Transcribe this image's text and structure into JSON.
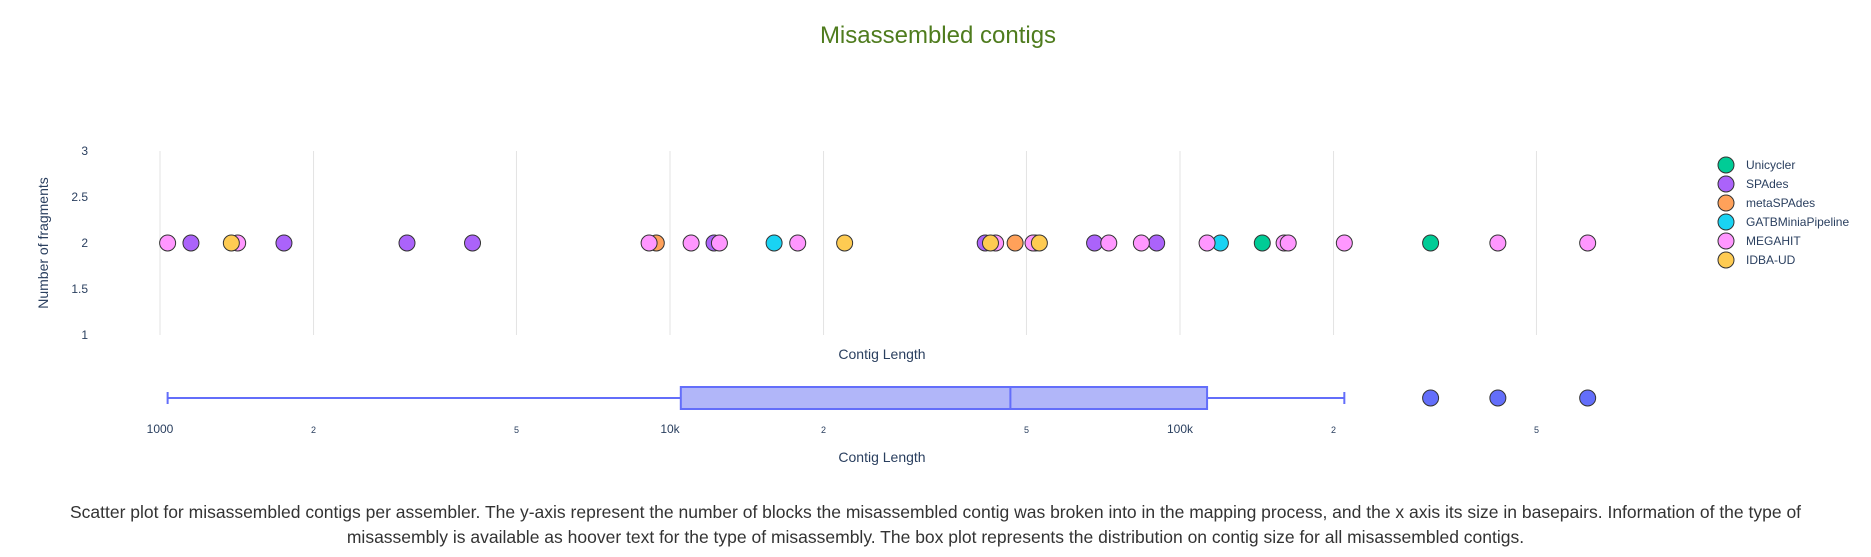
{
  "chart_data": {
    "type": "scatter",
    "title": "Misassembled contigs",
    "xlabel": "Contig Length",
    "ylabel": "Number of fragments",
    "x_scale": "log",
    "xlim": [
      1000,
      700000
    ],
    "ylim": [
      1,
      3
    ],
    "y_ticks": [
      {
        "value": 1,
        "label": "1"
      },
      {
        "value": 1.5,
        "label": "1.5"
      },
      {
        "value": 2,
        "label": "2"
      },
      {
        "value": 2.5,
        "label": "2.5"
      },
      {
        "value": 3,
        "label": "3"
      }
    ],
    "x_ticks": [
      {
        "value": 1000,
        "label": "1000",
        "major": true
      },
      {
        "value": 2000,
        "label": "2",
        "major": false
      },
      {
        "value": 5000,
        "label": "5",
        "major": false
      },
      {
        "value": 10000,
        "label": "10k",
        "major": true
      },
      {
        "value": 20000,
        "label": "2",
        "major": false
      },
      {
        "value": 50000,
        "label": "5",
        "major": false
      },
      {
        "value": 100000,
        "label": "100k",
        "major": true
      },
      {
        "value": 200000,
        "label": "2",
        "major": false
      },
      {
        "value": 500000,
        "label": "5",
        "major": false
      }
    ],
    "grid": true,
    "legend_position": "right",
    "series": [
      {
        "name": "Unicycler",
        "color": "#00cc96",
        "points": [
          {
            "x": 145000,
            "y": 2
          },
          {
            "x": 310000,
            "y": 2
          }
        ]
      },
      {
        "name": "SPAdes",
        "color": "#ab63fa",
        "points": [
          {
            "x": 1150,
            "y": 2
          },
          {
            "x": 1750,
            "y": 2
          },
          {
            "x": 3050,
            "y": 2
          },
          {
            "x": 4100,
            "y": 2
          },
          {
            "x": 12200,
            "y": 2
          },
          {
            "x": 41500,
            "y": 2
          },
          {
            "x": 68000,
            "y": 2
          },
          {
            "x": 90000,
            "y": 2
          }
        ]
      },
      {
        "name": "metaSPAdes",
        "color": "#ffa15a",
        "points": [
          {
            "x": 9400,
            "y": 2
          },
          {
            "x": 47500,
            "y": 2
          },
          {
            "x": 52000,
            "y": 2
          }
        ]
      },
      {
        "name": "GATBMiniaPipeline",
        "color": "#19d3f3",
        "points": [
          {
            "x": 16000,
            "y": 2
          },
          {
            "x": 120000,
            "y": 2
          }
        ]
      },
      {
        "name": "MEGAHIT",
        "color": "#ff97ff",
        "points": [
          {
            "x": 1035,
            "y": 2
          },
          {
            "x": 1420,
            "y": 2
          },
          {
            "x": 9100,
            "y": 2
          },
          {
            "x": 11000,
            "y": 2
          },
          {
            "x": 12500,
            "y": 2
          },
          {
            "x": 17800,
            "y": 2
          },
          {
            "x": 43500,
            "y": 2
          },
          {
            "x": 51500,
            "y": 2
          },
          {
            "x": 72500,
            "y": 2
          },
          {
            "x": 84000,
            "y": 2
          },
          {
            "x": 113000,
            "y": 2
          },
          {
            "x": 160000,
            "y": 2
          },
          {
            "x": 163000,
            "y": 2
          },
          {
            "x": 210000,
            "y": 2
          },
          {
            "x": 420000,
            "y": 2
          },
          {
            "x": 630000,
            "y": 2
          }
        ]
      },
      {
        "name": "IDBA-UD",
        "color": "#fecb52",
        "points": [
          {
            "x": 1380,
            "y": 2
          },
          {
            "x": 22000,
            "y": 2
          },
          {
            "x": 42500,
            "y": 2
          },
          {
            "x": 53000,
            "y": 2
          }
        ]
      }
    ],
    "box_plot": {
      "color": "#636efa",
      "fill": "#b1b6f9",
      "xlabel": "Contig Length",
      "whisker_low": 1035,
      "q1": 10500,
      "median": 46500,
      "q3": 113000,
      "whisker_high": 210000,
      "outliers": [
        310000,
        420000,
        630000
      ]
    }
  },
  "caption": "Scatter plot for misassembled contigs per assembler. The y-axis represent the number of blocks the misassembled contig was broken into in the mapping process, and the x axis its size in basepairs. Information of the type of misassembly is available as hoover text for the type of misassembly. The box plot represents the distribution on contig size for all misassembled contigs."
}
